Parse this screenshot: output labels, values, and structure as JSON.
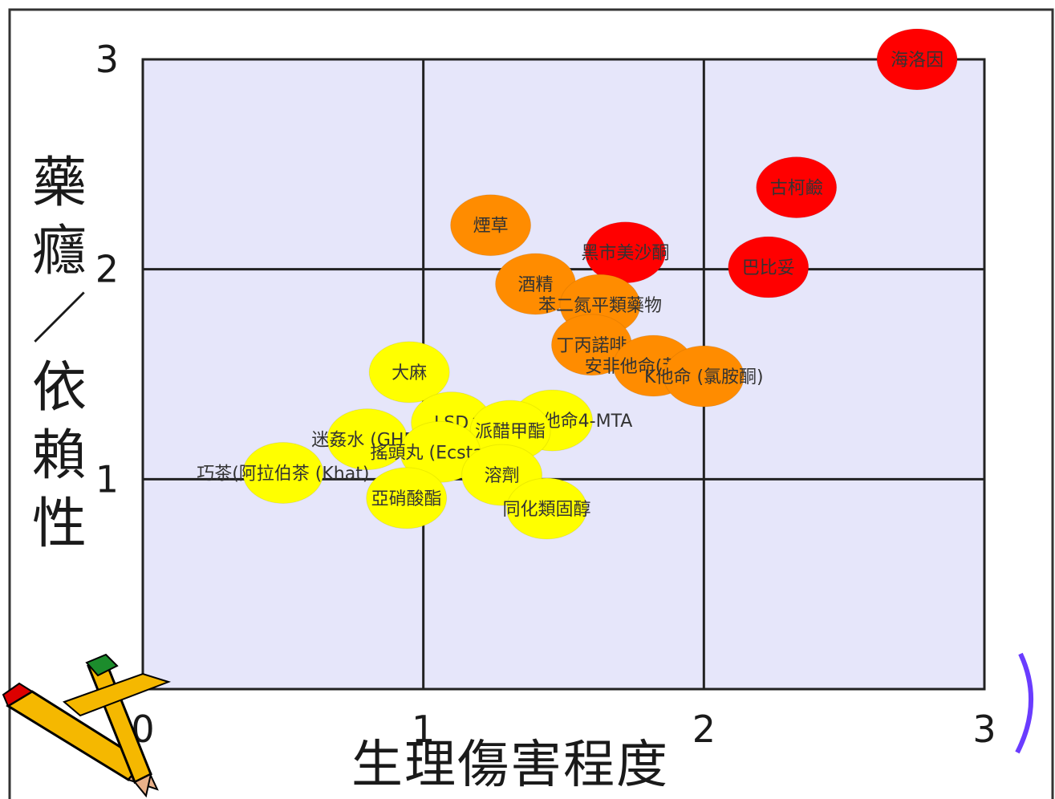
{
  "chart_data": {
    "type": "scatter",
    "title": "",
    "xlabel": "生理傷害程度",
    "ylabel": "藥癮／依賴性",
    "xlim": [
      0,
      3
    ],
    "ylim": [
      0,
      3
    ],
    "x_ticks": [
      "0",
      "1",
      "2",
      "3"
    ],
    "y_ticks": [
      "1",
      "2",
      "3"
    ],
    "grid": true,
    "colors": {
      "high": "#ff0000",
      "medium": "#ff8c00",
      "low": "#ffff00",
      "plot_bg": "#e6e6fa"
    },
    "points": [
      {
        "label": "海洛因",
        "x": 2.76,
        "y": 3.0,
        "group": "high"
      },
      {
        "label": "古柯鹼",
        "x": 2.33,
        "y": 2.39,
        "group": "high"
      },
      {
        "label": "黑市美沙酮",
        "x": 1.72,
        "y": 2.08,
        "group": "high"
      },
      {
        "label": "巴比妥",
        "x": 2.23,
        "y": 2.01,
        "group": "high"
      },
      {
        "label": "煙草",
        "x": 1.24,
        "y": 2.21,
        "group": "medium"
      },
      {
        "label": "酒精",
        "x": 1.4,
        "y": 1.93,
        "group": "medium"
      },
      {
        "label": "苯二氮平類藥物",
        "x": 1.63,
        "y": 1.83,
        "group": "medium"
      },
      {
        "label": "丁丙諾啡",
        "x": 1.6,
        "y": 1.64,
        "group": "medium"
      },
      {
        "label": "安非他命(苯丙胺)",
        "x": 1.82,
        "y": 1.54,
        "group": "medium"
      },
      {
        "label": "K他命 (氯胺酮)",
        "x": 2.0,
        "y": 1.49,
        "group": "medium"
      },
      {
        "label": "大麻",
        "x": 0.95,
        "y": 1.51,
        "group": "low"
      },
      {
        "label": "LSD",
        "x": 1.1,
        "y": 1.27,
        "group": "low"
      },
      {
        "label": "合成安非他命4-MTA",
        "x": 1.46,
        "y": 1.28,
        "group": "low"
      },
      {
        "label": "派醋甲酯",
        "x": 1.31,
        "y": 1.23,
        "group": "low"
      },
      {
        "label": "迷姦水 (GHB)",
        "x": 0.8,
        "y": 1.19,
        "group": "low"
      },
      {
        "label": "搖頭丸 (Ecstasy)",
        "x": 1.06,
        "y": 1.13,
        "group": "low"
      },
      {
        "label": "巧茶(阿拉伯茶 (Khat)",
        "x": 0.5,
        "y": 1.03,
        "group": "low"
      },
      {
        "label": "溶劑",
        "x": 1.28,
        "y": 1.02,
        "group": "low"
      },
      {
        "label": "亞硝酸酯",
        "x": 0.94,
        "y": 0.91,
        "group": "low"
      },
      {
        "label": "同化類固醇",
        "x": 1.44,
        "y": 0.86,
        "group": "low"
      }
    ]
  }
}
